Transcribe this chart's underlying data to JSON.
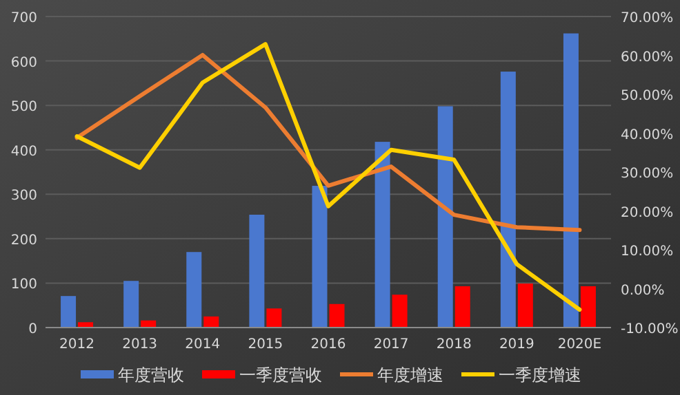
{
  "chart_data": {
    "type": "bar",
    "categories": [
      "2012",
      "2013",
      "2014",
      "2015",
      "2016",
      "2017",
      "2018",
      "2019",
      "2020E"
    ],
    "series": [
      {
        "name": "年度营收",
        "color": "#4a78cf",
        "values": [
          71,
          105,
          170,
          254,
          319,
          418,
          498,
          576,
          662
        ]
      },
      {
        "name": "一季度营收",
        "color": "#ff0000",
        "values": [
          12,
          16,
          25,
          43,
          53,
          74,
          93,
          99,
          93
        ]
      },
      {
        "name": "年度增速",
        "color": "#ed7d31",
        "type": "line",
        "axis": "y2",
        "values": [
          38.8,
          49.5,
          60.1,
          46.6,
          26.5,
          31.4,
          19.0,
          15.8,
          15.1
        ]
      },
      {
        "name": "一季度增速",
        "color": "#ffd000",
        "type": "line",
        "axis": "y2",
        "values": [
          39.2,
          31.1,
          53.0,
          62.9,
          21.2,
          35.7,
          33.2,
          6.3,
          -5.4
        ]
      }
    ],
    "ylim": [
      0,
      700
    ],
    "yticks": [
      0,
      100,
      200,
      300,
      400,
      500,
      600,
      700
    ],
    "y2lim": [
      -10,
      70
    ],
    "y2ticks": [
      {
        "value": -10,
        "label": "-10.00%"
      },
      {
        "value": 0,
        "label": "0.00%"
      },
      {
        "value": 10,
        "label": "10.00%"
      },
      {
        "value": 20,
        "label": "20.00%"
      },
      {
        "value": 30,
        "label": "30.00%"
      },
      {
        "value": 40,
        "label": "40.00%"
      },
      {
        "value": 50,
        "label": "50.00%"
      },
      {
        "value": 60,
        "label": "60.00%"
      },
      {
        "value": 70,
        "label": "70.00%"
      }
    ],
    "grid": "y",
    "legend": "bottom"
  }
}
